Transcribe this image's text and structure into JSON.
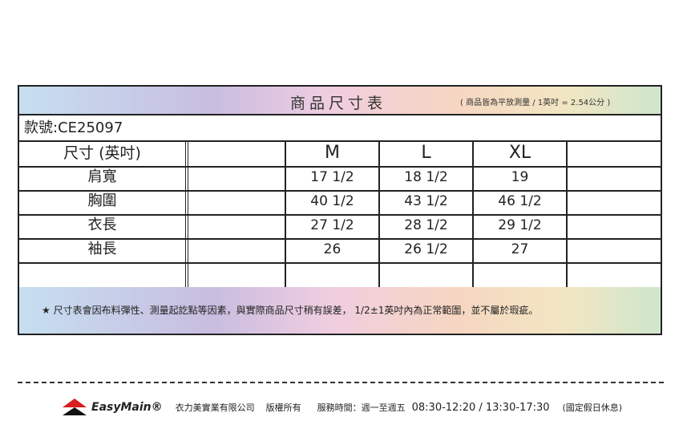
{
  "header": {
    "title": "商品尺寸表",
    "subtitle": "( 商品皆為平放測量 / 1英吋 = 2.54公分 )"
  },
  "style_number": "款號:CE25097",
  "size_header": {
    "label": "尺寸 (英吋)",
    "sizes": [
      "",
      "M",
      "L",
      "XL",
      ""
    ]
  },
  "rows": [
    {
      "label": "肩寬",
      "values": [
        "",
        "17 1/2",
        "18 1/2",
        "19",
        ""
      ]
    },
    {
      "label": "胸圍",
      "values": [
        "",
        "40 1/2",
        "43 1/2",
        "46 1/2",
        ""
      ]
    },
    {
      "label": "衣長",
      "values": [
        "",
        "27 1/2",
        "28 1/2",
        "29 1/2",
        ""
      ]
    },
    {
      "label": "袖長",
      "values": [
        "",
        "26",
        "26 1/2",
        "27",
        ""
      ]
    },
    {
      "label": "",
      "values": [
        "",
        "",
        "",
        "",
        ""
      ]
    }
  ],
  "note": "★ 尺寸表會因布料彈性、測量起訖點等因素，與實際商品尺寸稍有誤差， 1/2±1英吋內為正常範圍，並不屬於瑕疵。",
  "footer": {
    "brand": "EasyMain®",
    "company": "衣力美實業有限公司",
    "copyright": "版權所有",
    "hours_label": "服務時間：週一至週五",
    "hours": "08:30-12:20 / 13:30-17:30",
    "holiday": "(國定假日休息)"
  },
  "colors": {
    "logo_red": "#d81e1e",
    "logo_black": "#111111"
  }
}
